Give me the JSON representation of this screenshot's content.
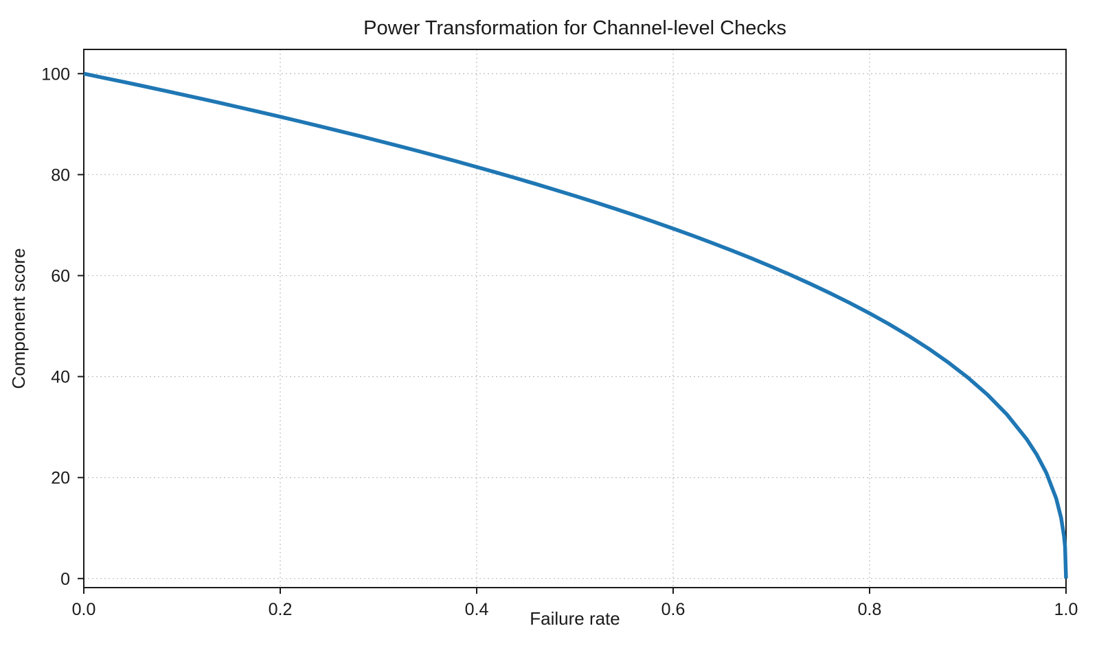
{
  "page": {
    "background": "#ffffff"
  },
  "chart_data": {
    "type": "line",
    "title": "Power Transformation for Channel-level Checks",
    "xlabel": "Failure rate",
    "ylabel": "Component score",
    "xlim": [
      0.0,
      1.0
    ],
    "ylim": [
      -1.8,
      104.8
    ],
    "xticks": [
      0.0,
      0.2,
      0.4,
      0.6,
      0.8,
      1.0
    ],
    "xtick_labels": [
      "0.0",
      "0.2",
      "0.4",
      "0.6",
      "0.8",
      "1.0"
    ],
    "yticks": [
      0,
      20,
      40,
      60,
      80,
      100
    ],
    "ytick_labels": [
      "0",
      "20",
      "40",
      "60",
      "80",
      "100"
    ],
    "grid": "dotted",
    "grid_color": "#c4c4c4",
    "spine_color": "#1a1a1a",
    "legend": "none",
    "series": [
      {
        "name": "component-score-curve",
        "color": "#1f77b4",
        "line_width": 5.5,
        "x": [
          0.0,
          0.02,
          0.04,
          0.06,
          0.08,
          0.1,
          0.12,
          0.14,
          0.16,
          0.18,
          0.2,
          0.22,
          0.24,
          0.26,
          0.28,
          0.3,
          0.32,
          0.34,
          0.36,
          0.38,
          0.4,
          0.42,
          0.44,
          0.46,
          0.48,
          0.5,
          0.52,
          0.54,
          0.56,
          0.58,
          0.6,
          0.62,
          0.64,
          0.66,
          0.68,
          0.7,
          0.72,
          0.74,
          0.76,
          0.78,
          0.8,
          0.82,
          0.84,
          0.86,
          0.88,
          0.9,
          0.92,
          0.94,
          0.96,
          0.97,
          0.98,
          0.99,
          0.995,
          0.998,
          0.999,
          1.0
        ],
        "y": [
          100.0,
          99.19,
          98.38,
          97.56,
          96.72,
          95.87,
          95.02,
          94.15,
          93.26,
          92.37,
          91.46,
          90.54,
          89.6,
          88.65,
          87.69,
          86.7,
          85.71,
          84.69,
          83.65,
          82.6,
          81.52,
          80.42,
          79.3,
          78.16,
          76.98,
          75.79,
          74.56,
          73.3,
          72.01,
          70.68,
          69.31,
          67.91,
          66.45,
          64.95,
          63.4,
          61.78,
          60.1,
          58.34,
          56.5,
          54.57,
          52.53,
          50.36,
          48.04,
          45.55,
          42.82,
          39.81,
          36.41,
          32.45,
          27.59,
          24.6,
          20.91,
          15.85,
          12.01,
          8.33,
          6.31,
          0.0
        ]
      }
    ]
  }
}
